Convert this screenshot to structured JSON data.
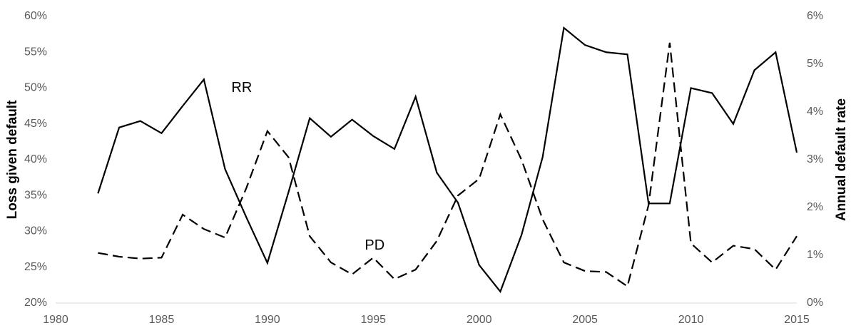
{
  "chart_data": {
    "type": "line",
    "x": [
      1982,
      1983,
      1984,
      1985,
      1986,
      1987,
      1988,
      1989,
      1990,
      1991,
      1992,
      1993,
      1994,
      1995,
      1996,
      1997,
      1998,
      1999,
      2000,
      2001,
      2002,
      2003,
      2004,
      2005,
      2006,
      2007,
      2008,
      2009,
      2010,
      2011,
      2012,
      2013,
      2014,
      2015
    ],
    "series": [
      {
        "name": "RR",
        "color": "#000000",
        "line_style": "solid",
        "values": [
          35.3,
          44.5,
          45.4,
          43.7,
          47.5,
          51.2,
          38.7,
          32,
          25.6,
          35.5,
          45.8,
          43.2,
          45.6,
          43.3,
          41.5,
          48.8,
          38.2,
          34,
          25.3,
          21.6,
          29.5,
          40.4,
          58.4,
          56,
          55,
          54.7,
          33.9,
          33.9,
          50,
          49.3,
          45,
          52.5,
          55,
          41
        ]
      },
      {
        "name": "PD",
        "color": "#000000",
        "line_style": "dashed",
        "axis": "y2",
        "values": [
          1.05,
          0.97,
          0.93,
          0.95,
          1.85,
          1.55,
          1.37,
          2.4,
          3.6,
          3.05,
          1.4,
          0.85,
          0.6,
          0.95,
          0.5,
          0.7,
          1.3,
          2.25,
          2.6,
          3.95,
          3.0,
          1.75,
          0.85,
          0.67,
          0.65,
          0.35,
          2.05,
          5.45,
          1.25,
          0.85,
          1.2,
          1.13,
          0.7,
          1.4
        ]
      }
    ],
    "xlim": [
      1980,
      2015
    ],
    "xticks": [
      1980,
      1985,
      1990,
      1995,
      2000,
      2005,
      2010,
      2015
    ],
    "ylim": [
      20,
      60
    ],
    "yticks": [
      {
        "value": 20,
        "label": "20%"
      },
      {
        "value": 25,
        "label": "25%"
      },
      {
        "value": 30,
        "label": "30%"
      },
      {
        "value": 35,
        "label": "35%"
      },
      {
        "value": 40,
        "label": "40%"
      },
      {
        "value": 45,
        "label": "45%"
      },
      {
        "value": 50,
        "label": "50%"
      },
      {
        "value": 55,
        "label": "55%"
      },
      {
        "value": 60,
        "label": "60%"
      }
    ],
    "y2lim": [
      0,
      6
    ],
    "y2ticks": [
      {
        "value": 0,
        "label": "0%"
      },
      {
        "value": 1,
        "label": "1%"
      },
      {
        "value": 2,
        "label": "2%"
      },
      {
        "value": 3,
        "label": "3%"
      },
      {
        "value": 4,
        "label": "4%"
      },
      {
        "value": 5,
        "label": "5%"
      },
      {
        "value": 6,
        "label": "6%"
      }
    ],
    "ylabel": "Loss given default",
    "y2label": "Annual default rate",
    "grid": false
  }
}
